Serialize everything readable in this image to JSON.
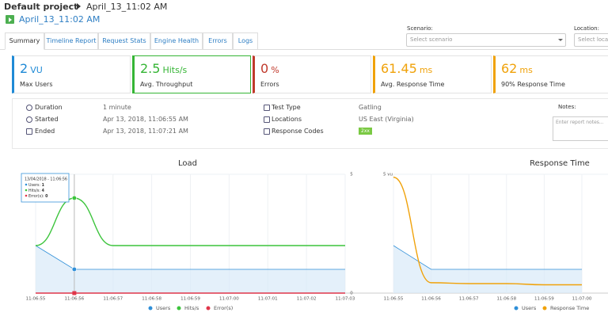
{
  "breadcrumb": {
    "project": "Default project",
    "report": "April_13_11:02 AM"
  },
  "report_title": "April_13_11:02 AM",
  "tabs": [
    "Summary",
    "Timeline Report",
    "Request Stats",
    "Engine Health",
    "Errors",
    "Logs"
  ],
  "filters": {
    "scenario_label": "Scenario:",
    "scenario_placeholder": "Select scenario",
    "location_label": "Location:",
    "location_placeholder": "Select location"
  },
  "kpis": [
    {
      "value": 2,
      "unit": "VU",
      "label": "Max Users",
      "color": "#1f8ad6"
    },
    {
      "value": 2.5,
      "unit": "Hits/s",
      "label": "Avg. Throughput",
      "color": "#35b535"
    },
    {
      "value": 0,
      "unit": "%",
      "label": "Errors",
      "color": "#c0392b"
    },
    {
      "value": 61.45,
      "unit": "ms",
      "label": "Avg. Response Time",
      "color": "#f0a20a"
    },
    {
      "value": 62,
      "unit": "ms",
      "label": "90% Response Time",
      "color": "#f0a20a"
    }
  ],
  "details_left": [
    {
      "label": "Duration",
      "value": "1 minute"
    },
    {
      "label": "Started",
      "value": "Apr 13, 2018, 11:06:55 AM"
    },
    {
      "label": "Ended",
      "value": "Apr 13, 2018, 11:07:21 AM"
    }
  ],
  "details_right": [
    {
      "label": "Test Type",
      "value": "Gatling"
    },
    {
      "label": "Locations",
      "value": "US East (Virginia)"
    },
    {
      "label": "Response Codes",
      "value": "2xx"
    }
  ],
  "notes": {
    "label": "Notes:",
    "placeholder": "Enter report notes..."
  },
  "chart_data": [
    {
      "type": "line",
      "title": "Load",
      "categories": [
        "11:06:55",
        "11:06:56",
        "11:06:57",
        "11:06:58",
        "11:06:59",
        "11:07:00",
        "11:07:01",
        "11:07:02",
        "11:07:03"
      ],
      "series": [
        {
          "name": "Users",
          "color": "#2f8fd8",
          "values": [
            2,
            1,
            1,
            1,
            1,
            1,
            1,
            1,
            1
          ]
        },
        {
          "name": "Hits/s",
          "color": "#3cc43c",
          "values": [
            2,
            4,
            2,
            2,
            2,
            2,
            2,
            2,
            2
          ]
        },
        {
          "name": "Error(s)",
          "color": "#e0364a",
          "values": [
            0,
            0,
            0,
            0,
            0,
            0,
            0,
            0,
            0
          ]
        }
      ],
      "ylim": [
        0,
        5
      ],
      "yticks": [
        0,
        5
      ],
      "tooltip": {
        "title": "13/04/2018 - 11:06:56",
        "items": [
          {
            "name": "Users:",
            "value": 1
          },
          {
            "name": "Hits/s:",
            "value": 4
          },
          {
            "name": "Error(s):",
            "value": 0
          }
        ]
      }
    },
    {
      "type": "line",
      "title": "Response Time",
      "categories": [
        "11:06:55",
        "11:06:56",
        "11:06:57",
        "11:06:58",
        "11:06:59",
        "11:07:00"
      ],
      "series": [
        {
          "name": "Users",
          "color": "#2f8fd8",
          "values": [
            2,
            1,
            1,
            1,
            1,
            1
          ]
        },
        {
          "name": "Response Time",
          "color": "#f0a20a",
          "axis": "y2",
          "values": [
            390,
            35,
            32,
            32,
            28,
            28
          ]
        }
      ],
      "ylim": [
        0,
        5
      ],
      "yticks": [
        {
          "value": 5,
          "label": "5 vu"
        }
      ],
      "y2lim": [
        0,
        400
      ]
    }
  ]
}
